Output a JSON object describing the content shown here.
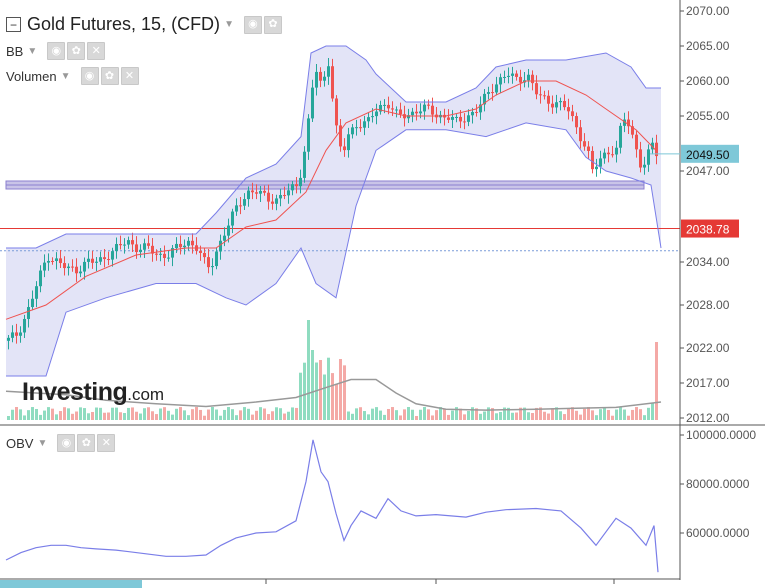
{
  "header": {
    "title": "Gold Futures, 15, (CFD)",
    "indicators": [
      {
        "label": "BB"
      },
      {
        "label": "Volumen"
      }
    ],
    "obv_label": "OBV"
  },
  "logo": {
    "brand": "Investing",
    "tld": ".com"
  },
  "colors": {
    "up": "#26a69a",
    "down": "#ef5350",
    "band": "#7a7ee8",
    "band_fill": "#e3e4f7",
    "bb_mid": "#ef5350",
    "obv": "#7a7ee8",
    "vol_up": "#8fdcc0",
    "vol_down": "#f4a9a6",
    "marker_blue": "#7ec8d8",
    "marker_red": "#e53935"
  },
  "price_axis": {
    "ticks": [
      "2070.00",
      "2065.00",
      "2060.00",
      "2055.00",
      "2047.00",
      "2034.00",
      "2028.00",
      "2022.00",
      "2017.00",
      "2012.00"
    ],
    "marker_current": "2049.50",
    "marker_red": "2038.78"
  },
  "obv_axis": {
    "ticks": [
      "100000.0000",
      "80000.0000",
      "60000.0000"
    ]
  },
  "chart_data": {
    "type": "candlestick",
    "title": "Gold Futures, 15, (CFD)",
    "y_ticks": [
      2070,
      2065,
      2060,
      2055,
      2047,
      2034,
      2028,
      2022,
      2017,
      2012
    ],
    "close_path": [
      [
        0,
        2023
      ],
      [
        10,
        2024
      ],
      [
        20,
        2027
      ],
      [
        30,
        2031
      ],
      [
        40,
        2035
      ],
      [
        50,
        2034
      ],
      [
        60,
        2033
      ],
      [
        70,
        2033
      ],
      [
        80,
        2034
      ],
      [
        90,
        2034
      ],
      [
        100,
        2035
      ],
      [
        110,
        2036
      ],
      [
        120,
        2037
      ],
      [
        130,
        2036
      ],
      [
        140,
        2036
      ],
      [
        150,
        2035
      ],
      [
        160,
        2035
      ],
      [
        170,
        2036
      ],
      [
        180,
        2037
      ],
      [
        190,
        2036
      ],
      [
        200,
        2033
      ],
      [
        205,
        2034
      ],
      [
        210,
        2036
      ],
      [
        220,
        2039
      ],
      [
        230,
        2042
      ],
      [
        240,
        2044
      ],
      [
        250,
        2044
      ],
      [
        260,
        2043
      ],
      [
        270,
        2043
      ],
      [
        280,
        2044
      ],
      [
        290,
        2045
      ],
      [
        295,
        2048
      ],
      [
        300,
        2053
      ],
      [
        305,
        2059
      ],
      [
        310,
        2062
      ],
      [
        315,
        2058
      ],
      [
        320,
        2064
      ],
      [
        325,
        2058
      ],
      [
        330,
        2052
      ],
      [
        335,
        2049
      ],
      [
        340,
        2052
      ],
      [
        350,
        2054
      ],
      [
        360,
        2054
      ],
      [
        370,
        2056
      ],
      [
        380,
        2057
      ],
      [
        390,
        2055
      ],
      [
        400,
        2055
      ],
      [
        410,
        2056
      ],
      [
        420,
        2056
      ],
      [
        430,
        2055
      ],
      [
        440,
        2055
      ],
      [
        450,
        2054
      ],
      [
        460,
        2055
      ],
      [
        470,
        2056
      ],
      [
        480,
        2058
      ],
      [
        490,
        2060
      ],
      [
        500,
        2061
      ],
      [
        510,
        2060
      ],
      [
        520,
        2061
      ],
      [
        530,
        2058
      ],
      [
        540,
        2057
      ],
      [
        550,
        2057
      ],
      [
        560,
        2056
      ],
      [
        570,
        2053
      ],
      [
        580,
        2050
      ],
      [
        585,
        2047
      ],
      [
        590,
        2048
      ],
      [
        600,
        2050
      ],
      [
        610,
        2050
      ],
      [
        615,
        2055
      ],
      [
        620,
        2054
      ],
      [
        625,
        2052
      ],
      [
        630,
        2050
      ],
      [
        635,
        2047
      ],
      [
        640,
        2049
      ],
      [
        645,
        2051
      ],
      [
        648,
        2054
      ],
      [
        650,
        2045
      ],
      [
        652,
        2040
      ],
      [
        655,
        2035
      ]
    ],
    "bb_upper": [
      [
        0,
        2036
      ],
      [
        30,
        2036
      ],
      [
        60,
        2038
      ],
      [
        100,
        2038
      ],
      [
        150,
        2038
      ],
      [
        190,
        2038
      ],
      [
        210,
        2041
      ],
      [
        240,
        2046
      ],
      [
        270,
        2048
      ],
      [
        295,
        2052
      ],
      [
        305,
        2064
      ],
      [
        320,
        2065
      ],
      [
        340,
        2065
      ],
      [
        360,
        2063
      ],
      [
        370,
        2061
      ],
      [
        400,
        2057
      ],
      [
        440,
        2057
      ],
      [
        470,
        2059
      ],
      [
        490,
        2062
      ],
      [
        520,
        2063
      ],
      [
        560,
        2063
      ],
      [
        600,
        2064
      ],
      [
        625,
        2062
      ],
      [
        640,
        2059
      ],
      [
        655,
        2059
      ]
    ],
    "bb_lower": [
      [
        0,
        2018
      ],
      [
        40,
        2018
      ],
      [
        60,
        2027
      ],
      [
        100,
        2029
      ],
      [
        150,
        2031
      ],
      [
        190,
        2031
      ],
      [
        220,
        2029
      ],
      [
        240,
        2028
      ],
      [
        270,
        2031
      ],
      [
        295,
        2036
      ],
      [
        310,
        2031
      ],
      [
        330,
        2029
      ],
      [
        350,
        2042
      ],
      [
        370,
        2050
      ],
      [
        400,
        2053
      ],
      [
        440,
        2053
      ],
      [
        480,
        2052
      ],
      [
        520,
        2054
      ],
      [
        560,
        2053
      ],
      [
        580,
        2049
      ],
      [
        600,
        2047
      ],
      [
        625,
        2046
      ],
      [
        645,
        2045
      ],
      [
        655,
        2036
      ]
    ],
    "bb_middle": [
      [
        0,
        2026
      ],
      [
        40,
        2028
      ],
      [
        80,
        2032
      ],
      [
        130,
        2035
      ],
      [
        180,
        2036
      ],
      [
        210,
        2036
      ],
      [
        240,
        2039
      ],
      [
        270,
        2040
      ],
      [
        300,
        2044
      ],
      [
        320,
        2050
      ],
      [
        340,
        2054
      ],
      [
        370,
        2056
      ],
      [
        400,
        2055
      ],
      [
        440,
        2055
      ],
      [
        470,
        2056
      ],
      [
        490,
        2058
      ],
      [
        520,
        2060
      ],
      [
        550,
        2060
      ],
      [
        580,
        2058
      ],
      [
        600,
        2056
      ],
      [
        630,
        2053
      ],
      [
        650,
        2050
      ]
    ],
    "hline_purple": 2045,
    "hline_red": 2038.78,
    "hline_dotted": 2035.6,
    "obv_ticks": [
      100000,
      80000,
      60000
    ],
    "obv": [
      [
        0,
        49000
      ],
      [
        15,
        52000
      ],
      [
        30,
        54000
      ],
      [
        45,
        55000
      ],
      [
        60,
        55000
      ],
      [
        75,
        54000
      ],
      [
        90,
        53500
      ],
      [
        110,
        53000
      ],
      [
        140,
        51500
      ],
      [
        160,
        50500
      ],
      [
        180,
        50500
      ],
      [
        200,
        51000
      ],
      [
        215,
        55000
      ],
      [
        230,
        58000
      ],
      [
        250,
        60000
      ],
      [
        270,
        60500
      ],
      [
        290,
        65000
      ],
      [
        300,
        81000
      ],
      [
        307,
        98000
      ],
      [
        315,
        85000
      ],
      [
        322,
        81000
      ],
      [
        330,
        68000
      ],
      [
        338,
        57000
      ],
      [
        345,
        63000
      ],
      [
        355,
        69000
      ],
      [
        370,
        66000
      ],
      [
        382,
        74000
      ],
      [
        395,
        69000
      ],
      [
        410,
        67000
      ],
      [
        430,
        67500
      ],
      [
        460,
        66500
      ],
      [
        480,
        68500
      ],
      [
        500,
        69500
      ],
      [
        530,
        70000
      ],
      [
        555,
        69000
      ],
      [
        575,
        62000
      ],
      [
        590,
        55000
      ],
      [
        610,
        66000
      ],
      [
        625,
        62000
      ],
      [
        640,
        55000
      ],
      [
        648,
        63000
      ],
      [
        652,
        44000
      ]
    ],
    "volume_ma": [
      [
        0,
        0.32
      ],
      [
        30,
        0.3
      ],
      [
        60,
        0.28
      ],
      [
        100,
        0.22
      ],
      [
        150,
        0.18
      ],
      [
        200,
        0.15
      ],
      [
        250,
        0.2
      ],
      [
        290,
        0.25
      ],
      [
        320,
        0.36
      ],
      [
        345,
        0.45
      ],
      [
        370,
        0.45
      ],
      [
        390,
        0.3
      ],
      [
        410,
        0.18
      ],
      [
        440,
        0.12
      ],
      [
        480,
        0.11
      ],
      [
        530,
        0.12
      ],
      [
        570,
        0.13
      ],
      [
        610,
        0.14
      ],
      [
        655,
        0.2
      ]
    ]
  }
}
